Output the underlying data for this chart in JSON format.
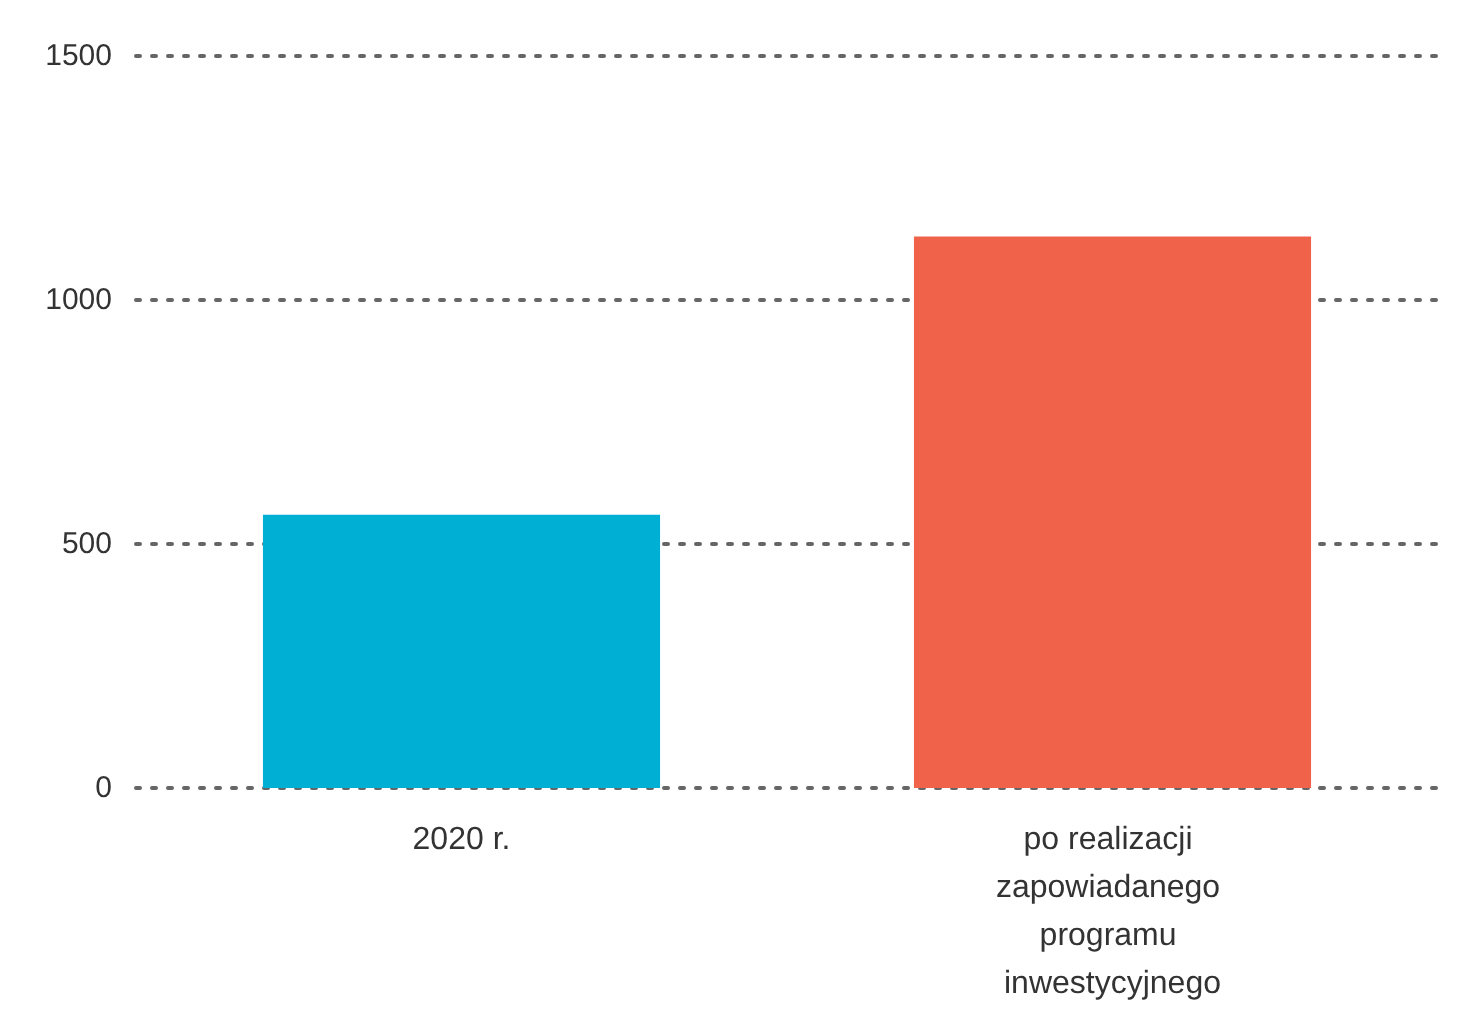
{
  "chart_data": {
    "type": "bar",
    "categories": [
      "2020 r.",
      "po realizacji zapowiadanego programu inwestycyjnego"
    ],
    "values": [
      560,
      1130
    ],
    "colors": [
      "#00b0d4",
      "#f0634a"
    ],
    "ylim": [
      0,
      1500
    ],
    "yticks": [
      0,
      500,
      1000,
      1500
    ],
    "grid": "y"
  }
}
